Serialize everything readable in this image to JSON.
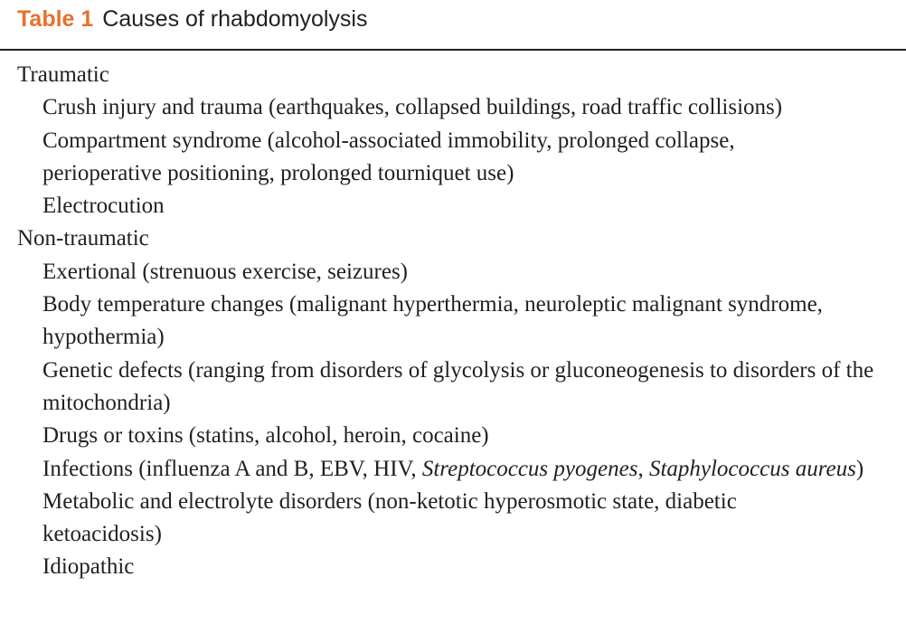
{
  "caption": {
    "label": "Table 1",
    "title": "Causes of rhabdomyolysis"
  },
  "traumatic": {
    "heading": "Traumatic",
    "items": [
      "Crush injury and trauma (earthquakes, collapsed buildings, road traffic collisions)",
      "Compartment syndrome (alcohol-associated immobility, prolonged collapse, perioperative positioning, prolonged tourniquet use)",
      "Electrocution"
    ]
  },
  "non_traumatic": {
    "heading": "Non-traumatic",
    "items": [
      "Exertional (strenuous exercise, seizures)",
      "Body temperature changes (malignant hyperthermia, neuroleptic malignant syndrome, hypothermia)",
      "Genetic defects (ranging from disorders of glycolysis or gluconeogenesis to disorders of the mitochondria)",
      "Drugs or toxins (statins, alcohol, heroin, cocaine)"
    ],
    "infections": {
      "prefix": "Infections (influenza A and B, EBV, HIV, ",
      "organism1": "Streptococcus pyogenes",
      "separator": ", ",
      "organism2": "Staphylococcus aureus",
      "suffix": ")"
    },
    "items_after": [
      "Metabolic and electrolyte disorders (non-ketotic hyperosmotic state, diabetic ketoacidosis)",
      "Idiopathic"
    ]
  }
}
